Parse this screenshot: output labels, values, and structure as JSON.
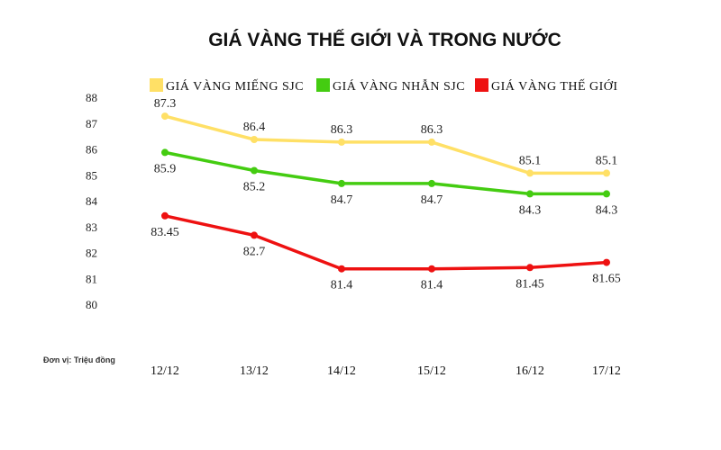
{
  "chart_data": {
    "type": "line",
    "title": "GIÁ VÀNG THẾ GIỚI VÀ TRONG NƯỚC",
    "unit_note": "Đơn vị: Triệu đồng",
    "categories": [
      "12/12",
      "13/12",
      "14/12",
      "15/12",
      "16/12",
      "17/12"
    ],
    "ylim": [
      80,
      88
    ],
    "yticks": [
      "80",
      "81",
      "82",
      "83",
      "84",
      "85",
      "86",
      "87",
      "88"
    ],
    "grid": false,
    "legend_position": "top",
    "series": [
      {
        "name": "GIÁ VÀNG MIẾNG SJC",
        "color": "#FFE066",
        "values": [
          87.3,
          86.4,
          86.3,
          86.3,
          85.1,
          85.1
        ],
        "labels": [
          "87.3",
          "86.4",
          "86.3",
          "86.3",
          "85.1",
          "85.1"
        ],
        "label_side": "above"
      },
      {
        "name": "GIÁ VÀNG NHẪN SJC",
        "color": "#44CC11",
        "values": [
          85.9,
          85.2,
          84.7,
          84.7,
          84.3,
          84.3
        ],
        "labels": [
          "85.9",
          "85.2",
          "84.7",
          "84.7",
          "84.3",
          "84.3"
        ],
        "label_side": "below"
      },
      {
        "name": "GIÁ VÀNG THẾ GIỚI",
        "color": "#EE1111",
        "values": [
          83.45,
          82.7,
          81.4,
          81.4,
          81.45,
          81.65
        ],
        "labels": [
          "83.45",
          "82.7",
          "81.4",
          "81.4",
          "81.45",
          "81.65"
        ],
        "label_side": "below"
      }
    ]
  }
}
